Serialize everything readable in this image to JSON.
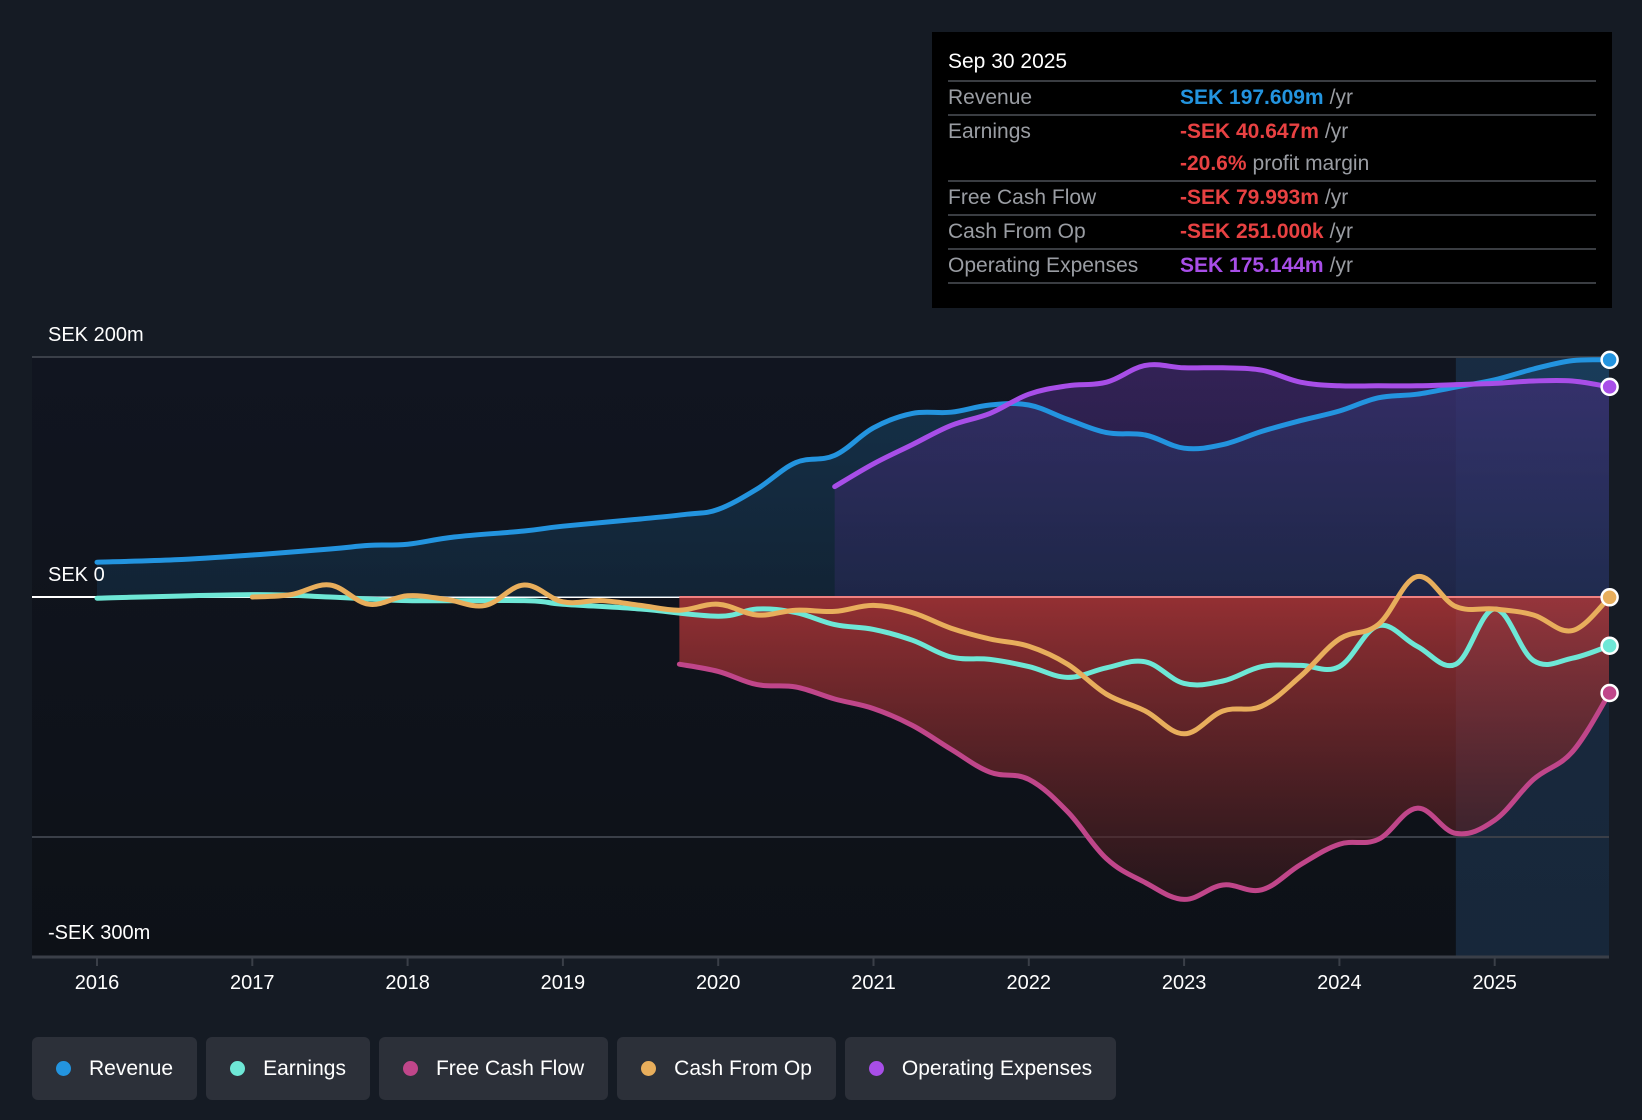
{
  "chart_data": {
    "type": "line",
    "title": "",
    "xlabel": "",
    "ylabel": "",
    "currency": "SEK",
    "units": "millions",
    "xlim": [
      2015.6,
      2025.75
    ],
    "ylim": [
      -300,
      200
    ],
    "y_ticks": [
      {
        "value": 200,
        "label": "SEK 200m"
      },
      {
        "value": 0,
        "label": "SEK 0"
      },
      {
        "value": -300,
        "label": "-SEK 300m"
      }
    ],
    "y_gridlines": [
      200,
      0,
      -200
    ],
    "x_ticks": [
      "2016",
      "2017",
      "2018",
      "2019",
      "2020",
      "2021",
      "2022",
      "2023",
      "2024",
      "2025"
    ],
    "highlight_start": 2024.75,
    "legend_position": "bottom-left",
    "series": [
      {
        "name": "Revenue",
        "color": "#2394df",
        "x": [
          2016.0,
          2016.5,
          2017.0,
          2017.5,
          2017.75,
          2018.0,
          2018.3,
          2018.75,
          2019.0,
          2019.5,
          2019.8,
          2020.0,
          2020.25,
          2020.5,
          2020.75,
          2021.0,
          2021.25,
          2021.5,
          2021.75,
          2022.0,
          2022.25,
          2022.5,
          2022.75,
          2023.0,
          2023.25,
          2023.5,
          2023.75,
          2024.0,
          2024.25,
          2024.5,
          2024.75,
          2025.0,
          2025.25,
          2025.5,
          2025.74
        ],
        "values": [
          29,
          31,
          35,
          40,
          43,
          44,
          50,
          55,
          59,
          65,
          69,
          73,
          90,
          112,
          118,
          141,
          153,
          154,
          160,
          160,
          148,
          137,
          135,
          124,
          127,
          138,
          147,
          155,
          166,
          169,
          175,
          181,
          190,
          197,
          197.6
        ]
      },
      {
        "name": "Earnings",
        "color": "#6ee7d6",
        "x": [
          2016.0,
          2017.0,
          2017.5,
          2018.0,
          2018.75,
          2019.0,
          2019.5,
          2020.0,
          2020.25,
          2020.5,
          2020.75,
          2021.0,
          2021.25,
          2021.5,
          2021.75,
          2022.0,
          2022.25,
          2022.5,
          2022.75,
          2023.0,
          2023.25,
          2023.5,
          2023.75,
          2024.0,
          2024.25,
          2024.5,
          2024.75,
          2025.0,
          2025.25,
          2025.5,
          2025.74
        ],
        "values": [
          -1,
          2,
          0,
          -3,
          -3,
          -6,
          -10,
          -16,
          -10,
          -13,
          -23,
          -27,
          -36,
          -50,
          -52,
          -58,
          -67,
          -59,
          -54,
          -72,
          -70,
          -58,
          -57,
          -58,
          -24,
          -41,
          -56,
          -10,
          -53,
          -51,
          -40.6
        ]
      },
      {
        "name": "Free Cash Flow",
        "color": "#c0468a",
        "x": [
          2019.75,
          2020.0,
          2020.25,
          2020.5,
          2020.75,
          2021.0,
          2021.25,
          2021.5,
          2021.75,
          2022.0,
          2022.25,
          2022.5,
          2022.75,
          2023.0,
          2023.25,
          2023.5,
          2023.75,
          2024.0,
          2024.25,
          2024.5,
          2024.75,
          2025.0,
          2025.25,
          2025.5,
          2025.74
        ],
        "values": [
          -56,
          -62,
          -73,
          -75,
          -85,
          -93,
          -107,
          -127,
          -146,
          -152,
          -179,
          -218,
          -238,
          -252,
          -240,
          -244,
          -223,
          -206,
          -202,
          -176,
          -197,
          -186,
          -152,
          -129,
          -80
        ]
      },
      {
        "name": "Cash From Op",
        "color": "#e8ae5c",
        "x": [
          2017.0,
          2017.25,
          2017.5,
          2017.75,
          2018.0,
          2018.25,
          2018.5,
          2018.75,
          2019.0,
          2019.25,
          2019.5,
          2019.75,
          2020.0,
          2020.25,
          2020.5,
          2020.75,
          2021.0,
          2021.25,
          2021.5,
          2021.75,
          2022.0,
          2022.25,
          2022.5,
          2022.75,
          2023.0,
          2023.25,
          2023.5,
          2023.75,
          2024.0,
          2024.25,
          2024.5,
          2024.75,
          2025.0,
          2025.25,
          2025.5,
          2025.74
        ],
        "values": [
          0,
          2,
          10,
          -6,
          1,
          -2,
          -7,
          10,
          -4,
          -3,
          -7,
          -11,
          -6,
          -15,
          -11,
          -12,
          -7,
          -13,
          -26,
          -35,
          -41,
          -56,
          -81,
          -95,
          -114,
          -95,
          -91,
          -66,
          -35,
          -23,
          17,
          -8,
          -10,
          -15,
          -28,
          -0.25
        ]
      },
      {
        "name": "Operating Expenses",
        "color": "#a84ee8",
        "x": [
          2020.75,
          2021.0,
          2021.25,
          2021.5,
          2021.75,
          2022.0,
          2022.25,
          2022.5,
          2022.75,
          2023.0,
          2023.25,
          2023.5,
          2023.75,
          2024.0,
          2024.25,
          2024.5,
          2024.75,
          2025.0,
          2025.25,
          2025.5,
          2025.74
        ],
        "values": [
          92,
          111,
          127,
          143,
          153,
          169,
          176,
          179,
          193,
          191,
          191,
          189,
          179,
          176,
          176,
          176,
          177,
          178,
          180,
          180,
          175.1
        ]
      }
    ]
  },
  "tooltip": {
    "date": "Sep 30 2025",
    "rows": [
      {
        "label": "Revenue",
        "value": "SEK 197.609m",
        "suffix": "/yr",
        "color": "#2394df"
      },
      {
        "label": "Earnings",
        "value": "-SEK 40.647m",
        "suffix": "/yr",
        "color": "#e84142"
      },
      {
        "label": "",
        "value": "-20.6%",
        "suffix": "profit margin",
        "color": "#e84142"
      },
      {
        "label": "Free Cash Flow",
        "value": "-SEK 79.993m",
        "suffix": "/yr",
        "color": "#e84142"
      },
      {
        "label": "Cash From Op",
        "value": "-SEK 251.000k",
        "suffix": "/yr",
        "color": "#e84142"
      },
      {
        "label": "Operating Expenses",
        "value": "SEK 175.144m",
        "suffix": "/yr",
        "color": "#a84ee8"
      }
    ]
  },
  "legend": [
    {
      "label": "Revenue",
      "color": "#2394df"
    },
    {
      "label": "Earnings",
      "color": "#6ee7d6"
    },
    {
      "label": "Free Cash Flow",
      "color": "#c0468a"
    },
    {
      "label": "Cash From Op",
      "color": "#e8ae5c"
    },
    {
      "label": "Operating Expenses",
      "color": "#a84ee8"
    }
  ]
}
